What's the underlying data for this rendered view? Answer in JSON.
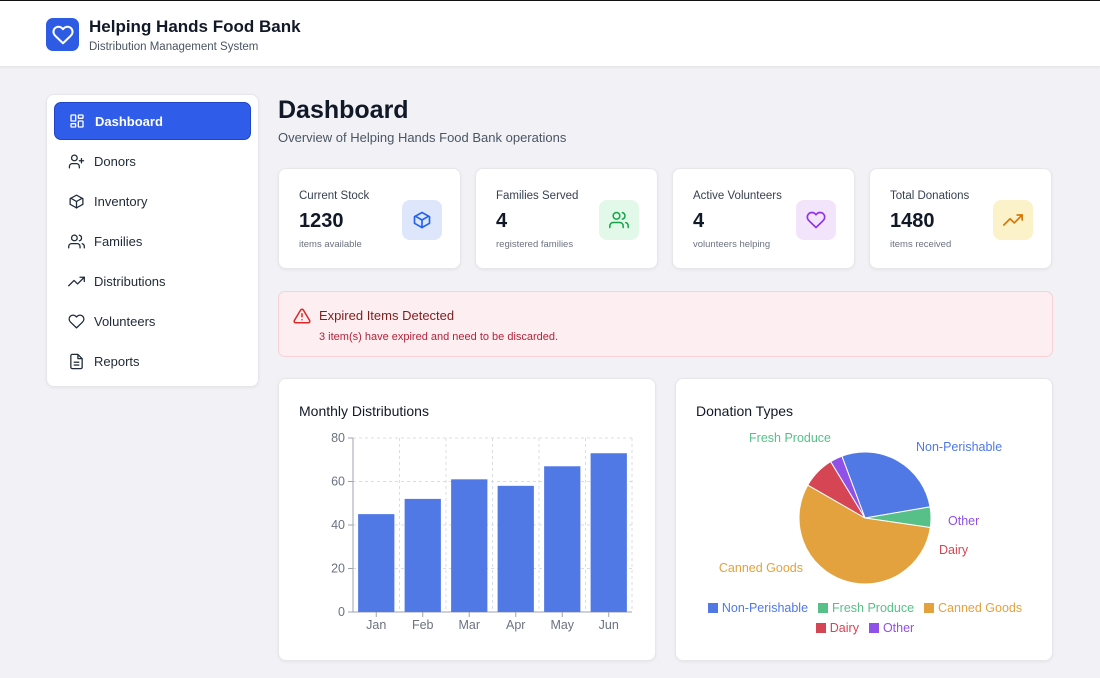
{
  "app": {
    "title": "Helping Hands Food Bank",
    "subtitle": "Distribution Management System"
  },
  "sidebar": {
    "items": [
      {
        "label": "Dashboard",
        "icon": "grid-icon",
        "active": true
      },
      {
        "label": "Donors",
        "icon": "user-plus-icon",
        "active": false
      },
      {
        "label": "Inventory",
        "icon": "box-icon",
        "active": false
      },
      {
        "label": "Families",
        "icon": "users-icon",
        "active": false
      },
      {
        "label": "Distributions",
        "icon": "trending-up-icon",
        "active": false
      },
      {
        "label": "Volunteers",
        "icon": "heart-icon",
        "active": false
      },
      {
        "label": "Reports",
        "icon": "file-text-icon",
        "active": false
      }
    ]
  },
  "page": {
    "title": "Dashboard",
    "subtitle": "Overview of Helping Hands Food Bank operations"
  },
  "stats": [
    {
      "label": "Current Stock",
      "value": "1230",
      "note": "items available",
      "icon": "box-icon",
      "color": "#2563eb",
      "bg": "#dde6fb"
    },
    {
      "label": "Families Served",
      "value": "4",
      "note": "registered families",
      "icon": "users-icon",
      "color": "#16a34a",
      "bg": "#e2f8e8"
    },
    {
      "label": "Active Volunteers",
      "value": "4",
      "note": "volunteers helping",
      "icon": "heart-icon",
      "color": "#9333ea",
      "bg": "#f1e4fb"
    },
    {
      "label": "Total Donations",
      "value": "1480",
      "note": "items received",
      "icon": "trending-up-icon",
      "color": "#d97706",
      "bg": "#fcf2c9"
    }
  ],
  "alert": {
    "title": "Expired Items Detected",
    "message": "3 item(s) have expired and need to be discarded.",
    "icon": "alert-triangle-icon",
    "color": "#dc2626"
  },
  "charts": {
    "bar_title": "Monthly Distributions",
    "pie_title": "Donation Types"
  },
  "chart_data": [
    {
      "type": "bar",
      "categories": [
        "Jan",
        "Feb",
        "Mar",
        "Apr",
        "May",
        "Jun"
      ],
      "values": [
        45,
        52,
        61,
        58,
        67,
        73
      ],
      "title": "Monthly Distributions",
      "xlabel": "",
      "ylabel": "",
      "ylim": [
        0,
        80
      ],
      "yticks": [
        0,
        20,
        40,
        60,
        80
      ],
      "grid": true,
      "color": "#5079e6"
    },
    {
      "type": "pie",
      "title": "Donation Types",
      "series": [
        {
          "name": "Non-Perishable",
          "value": 28,
          "color": "#5079e6"
        },
        {
          "name": "Fresh Produce",
          "value": 5,
          "color": "#57c089"
        },
        {
          "name": "Canned Goods",
          "value": 56,
          "color": "#e3a23e"
        },
        {
          "name": "Dairy",
          "value": 8,
          "color": "#d54553"
        },
        {
          "name": "Other",
          "value": 3,
          "color": "#8f51e8"
        }
      ],
      "legend": "bottom"
    }
  ]
}
